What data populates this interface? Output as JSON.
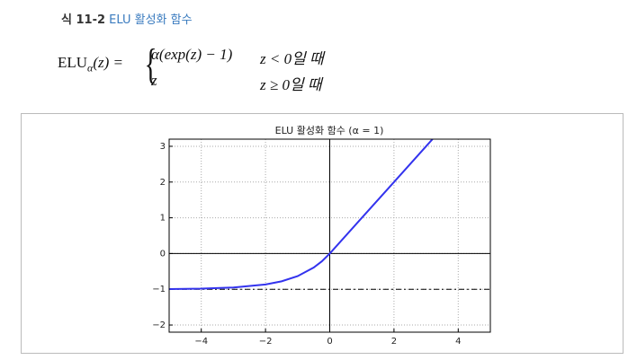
{
  "caption": {
    "label": "식 11-2",
    "title": "ELU 활성화 함수"
  },
  "equation": {
    "lhs_name": "ELU",
    "lhs_sub": "α",
    "lhs_arg": "(z) =",
    "cases": [
      {
        "expr": "α(exp(z) − 1)",
        "condition": "z < 0일 때"
      },
      {
        "expr": "z",
        "condition": "z ≥ 0일 때"
      }
    ]
  },
  "chart_data": {
    "type": "line",
    "title": "ELU 활성화 함수 (α = 1)",
    "x": [
      -5,
      -4,
      -3,
      -2,
      -1.5,
      -1,
      -0.5,
      -0.25,
      0,
      1,
      2,
      3,
      3.2
    ],
    "series": [
      {
        "name": "ELU",
        "color": "#3333ee",
        "values": [
          -0.993,
          -0.982,
          -0.95,
          -0.865,
          -0.777,
          -0.632,
          -0.393,
          -0.221,
          0,
          1,
          2,
          3,
          3.2
        ]
      }
    ],
    "xlim": [
      -5,
      5
    ],
    "ylim": [
      -2.2,
      3.2
    ],
    "xticks": [
      {
        "value": -4,
        "label": "−4"
      },
      {
        "value": -2,
        "label": "−2"
      },
      0,
      2,
      4
    ],
    "yticks": [
      {
        "value": -2,
        "label": "−2"
      },
      {
        "value": -1,
        "label": "−1"
      },
      0,
      1,
      2,
      3
    ],
    "grid": true,
    "axhlines": [
      {
        "y": 0,
        "style": "solid"
      },
      {
        "y": -1,
        "style": "dashdot"
      }
    ],
    "axvlines": [
      {
        "x": 0,
        "style": "solid"
      }
    ]
  }
}
